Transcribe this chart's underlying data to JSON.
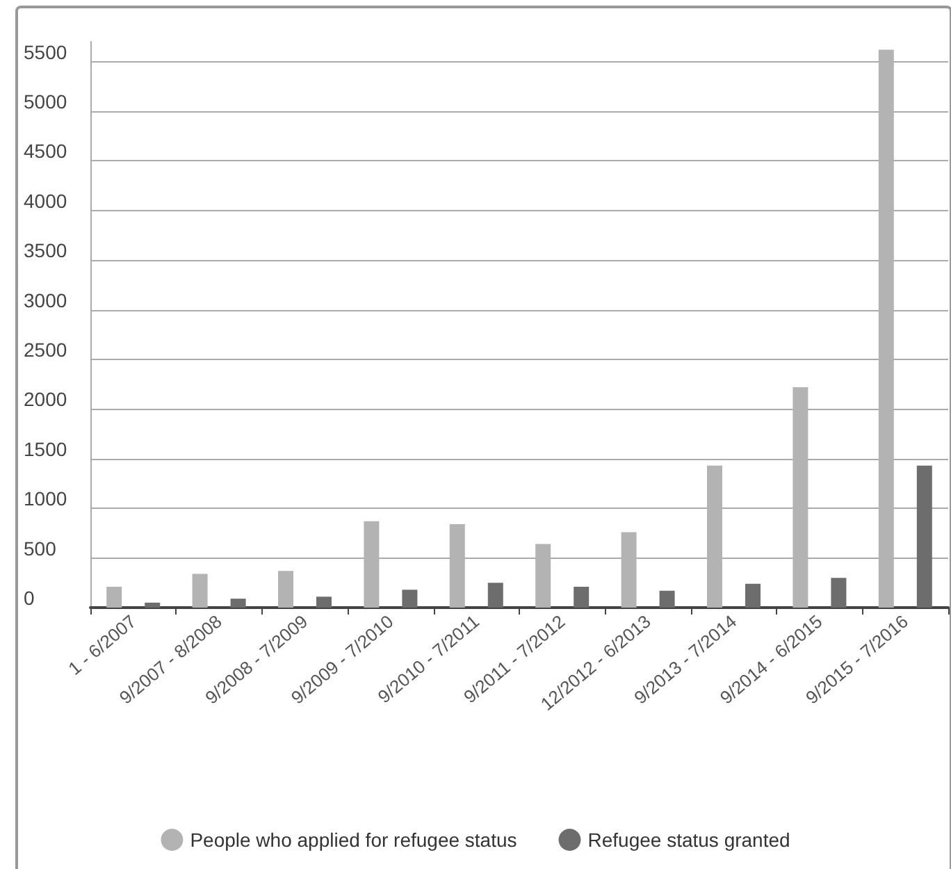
{
  "chart_data": {
    "type": "bar",
    "categories": [
      "1 - 6/2007",
      "9/2007 - 8/2008",
      "9/2008 - 7/2009",
      "9/2009 - 7/2010",
      "9/2010 - 7/2011",
      "9/2011 - 7/2012",
      "12/2012 - 6/2013",
      "9/2013 - 7/2014",
      "9/2014 - 6/2015",
      "9/2015 - 7/2016"
    ],
    "series": [
      {
        "name": "People who applied for refugee status",
        "color": "#b3b3b3",
        "values": [
          210,
          340,
          370,
          870,
          840,
          640,
          760,
          1430,
          2220,
          5620
        ]
      },
      {
        "name": "Refugee status granted",
        "color": "#6d6d6d",
        "values": [
          50,
          90,
          110,
          180,
          250,
          210,
          170,
          240,
          300,
          1430
        ]
      }
    ],
    "ylim": [
      0,
      5700
    ],
    "yticks": [
      0,
      500,
      1000,
      1500,
      2000,
      2500,
      3000,
      3500,
      4000,
      4500,
      5000,
      5500
    ],
    "grid": "y",
    "legend": "bottom"
  }
}
